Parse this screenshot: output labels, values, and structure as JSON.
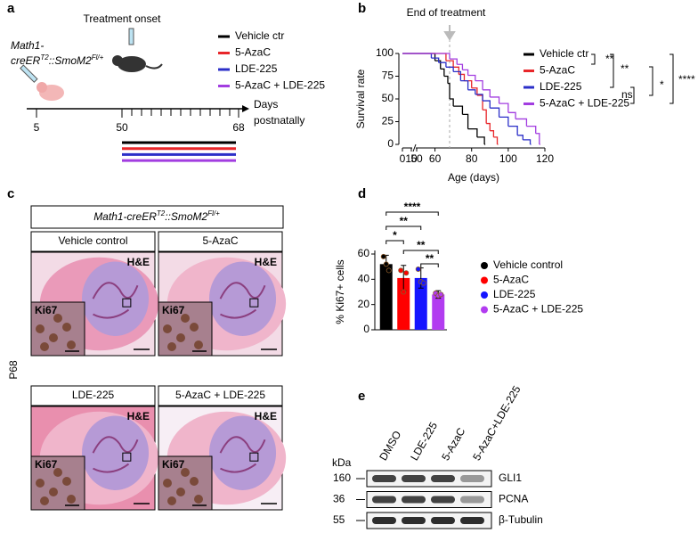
{
  "panel_labels": [
    "a",
    "b",
    "c",
    "d",
    "e"
  ],
  "timeline": {
    "title": "Treatment onset",
    "genotype_line1": "Math1-",
    "genotype_line2": [
      "creER",
      "T2",
      "::SmoM2",
      "Fl/+"
    ],
    "day_labels": [
      5,
      50,
      68
    ],
    "axis_label": [
      "Days",
      "postnatally"
    ],
    "legend": [
      {
        "name": "Vehicle ctr",
        "color": "#000000"
      },
      {
        "name": "5-AzaC",
        "color": "#e8262a"
      },
      {
        "name": "LDE-225",
        "color": "#2b2fc8"
      },
      {
        "name": "5-AzaC + LDE-225",
        "color": "#a23de0"
      }
    ]
  },
  "chart_data": [
    {
      "type": "line",
      "step": true,
      "annotation": "End of treatment",
      "annotation_x": 68,
      "x_label": "Age (days)",
      "y_label": "Survival rate",
      "xlim": [
        0,
        120
      ],
      "axis_break": [
        10,
        50
      ],
      "xticks": [
        0,
        10,
        50,
        60,
        80,
        100,
        120
      ],
      "ylim": [
        0,
        100
      ],
      "yticks": [
        0,
        25,
        50,
        75,
        100
      ],
      "series": [
        {
          "name": "Vehicle ctr",
          "color": "#000000",
          "x": [
            0,
            57,
            60,
            63,
            65,
            67,
            68,
            70,
            75,
            78,
            83,
            87
          ],
          "values": [
            100,
            100,
            92,
            83,
            75,
            67,
            50,
            42,
            33,
            17,
            8,
            0
          ]
        },
        {
          "name": "5-AzaC",
          "color": "#e8262a",
          "x": [
            0,
            60,
            66,
            70,
            73,
            76,
            80,
            83,
            86,
            88,
            90,
            92,
            94
          ],
          "values": [
            100,
            100,
            92,
            85,
            77,
            70,
            62,
            54,
            38,
            23,
            15,
            8,
            0
          ]
        },
        {
          "name": "LDE-225",
          "color": "#2b2fc8",
          "x": [
            0,
            55,
            58,
            62,
            66,
            70,
            74,
            78,
            82,
            86,
            90,
            95,
            100,
            105,
            108,
            112
          ],
          "values": [
            100,
            100,
            95,
            90,
            85,
            80,
            70,
            60,
            55,
            48,
            40,
            30,
            20,
            10,
            5,
            0
          ]
        },
        {
          "name": "5-AzaC + LDE-225",
          "color": "#a23de0",
          "x": [
            0,
            66,
            68,
            72,
            75,
            78,
            82,
            86,
            90,
            95,
            100,
            104,
            110,
            115,
            117
          ],
          "values": [
            100,
            100,
            94,
            88,
            82,
            76,
            70,
            60,
            52,
            45,
            35,
            28,
            20,
            12,
            0
          ]
        }
      ],
      "significance": [
        "**",
        "**",
        "ns",
        "*",
        "****"
      ]
    },
    {
      "type": "bar",
      "y_label": "% Ki67+ cells",
      "categories": [
        "Vehicle control",
        "5-AzaC",
        "LDE-225",
        "5-AzaC + LDE-225"
      ],
      "colors": [
        "#000000",
        "#ff0000",
        "#1515ff",
        "#b23cf0"
      ],
      "values": [
        52,
        41,
        41,
        28
      ],
      "errors": [
        7,
        10,
        8,
        3
      ],
      "points": [
        [
          58,
          52,
          47
        ],
        [
          47,
          30,
          45
        ],
        [
          48,
          38,
          37
        ],
        [
          29,
          27,
          28
        ]
      ],
      "ylim": [
        0,
        60
      ],
      "yticks": [
        0,
        20,
        40,
        60
      ],
      "significance": [
        "****",
        "**",
        "*",
        "**",
        "**"
      ]
    }
  ],
  "histology": {
    "genotype": [
      "Math1-creER",
      "T2",
      "::SmoM2",
      "Fl/+"
    ],
    "row_label": "P68",
    "images": [
      {
        "label": "Vehicle control",
        "stain": "H&E",
        "inset": "Ki67"
      },
      {
        "label": "5-AzaC",
        "stain": "H&E",
        "inset": "Ki67"
      },
      {
        "label": "LDE-225",
        "stain": "H&E",
        "inset": "Ki67"
      },
      {
        "label": "5-AzaC + LDE-225",
        "stain": "H&E",
        "inset": "Ki67"
      }
    ]
  },
  "blot": {
    "unit_label": "kDa",
    "lanes": [
      "DMSO",
      "LDE-225",
      "5-AzaC",
      "5-AzaC+LDE-225"
    ],
    "bands": [
      {
        "kda": 160,
        "name": "GLI1"
      },
      {
        "kda": 36,
        "name": "PCNA"
      },
      {
        "kda": 55,
        "name": "β-Tubulin"
      }
    ]
  }
}
